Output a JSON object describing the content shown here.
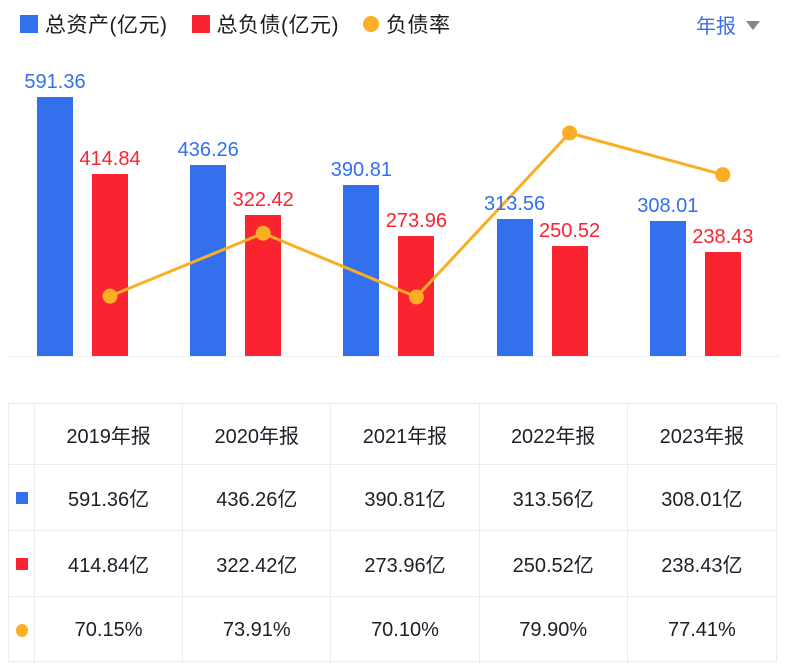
{
  "header": {
    "legend": [
      {
        "label": "总资产(亿元)",
        "shape": "square",
        "color": "#3370ee"
      },
      {
        "label": "总负债(亿元)",
        "shape": "square",
        "color": "#fa2430"
      },
      {
        "label": "负债率",
        "shape": "circle",
        "color": "#f9ae24"
      }
    ],
    "period_selector": {
      "label": "年报"
    }
  },
  "chart_data": {
    "type": "bar",
    "categories": [
      "2019年报",
      "2020年报",
      "2021年报",
      "2022年报",
      "2023年报"
    ],
    "series": [
      {
        "name": "总资产(亿元)",
        "type": "bar",
        "color": "#3370ee",
        "values": [
          591.36,
          436.26,
          390.81,
          313.56,
          308.01
        ]
      },
      {
        "name": "总负债(亿元)",
        "type": "bar",
        "color": "#fa2430",
        "values": [
          414.84,
          322.42,
          273.96,
          250.52,
          238.43
        ]
      },
      {
        "name": "负债率",
        "type": "line",
        "color": "#f9ae24",
        "unit": "%",
        "values": [
          70.15,
          73.91,
          70.1,
          79.9,
          77.41
        ]
      }
    ],
    "value_labels": true,
    "axes_hidden": true,
    "legend_position": "top-left"
  },
  "table": {
    "headers": [
      "2019年报",
      "2020年报",
      "2021年报",
      "2022年报",
      "2023年报"
    ],
    "rows": [
      {
        "marker": {
          "shape": "square",
          "color": "#3370ee"
        },
        "cells": [
          "591.36亿",
          "436.26亿",
          "390.81亿",
          "313.56亿",
          "308.01亿"
        ]
      },
      {
        "marker": {
          "shape": "square",
          "color": "#fa2430"
        },
        "cells": [
          "414.84亿",
          "322.42亿",
          "273.96亿",
          "250.52亿",
          "238.43亿"
        ]
      },
      {
        "marker": {
          "shape": "circle",
          "color": "#f9ae24"
        },
        "cells": [
          "70.15%",
          "73.91%",
          "70.10%",
          "79.90%",
          "77.41%"
        ]
      }
    ]
  }
}
